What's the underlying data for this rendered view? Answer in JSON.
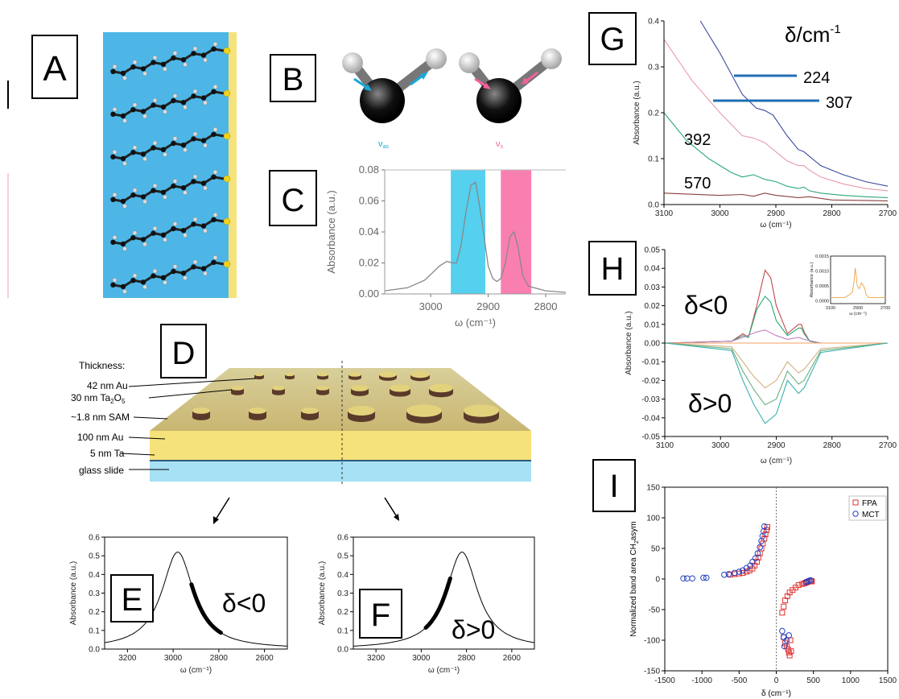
{
  "panels": {
    "A": "A",
    "B": "B",
    "C": "C",
    "D": "D",
    "E": "E",
    "F": "F",
    "G": "G",
    "H": "H",
    "I": "I"
  },
  "panel_b": {
    "label_left": "ν",
    "label_left_sub": "as",
    "label_right": "ν",
    "label_right_sub": "s"
  },
  "panel_d": {
    "thickness_title": "Thickness:",
    "layers": [
      "42 nm Au",
      "30 nm Ta",
      "~1.8 nm SAM",
      "100 nm Au",
      "5 nm Ta",
      "glass slide"
    ],
    "ta2o5_sub2": "2",
    "ta2o5_o": "O",
    "ta2o5_sub5": "5"
  },
  "colors": {
    "cyan_band": "#55d0ee",
    "pink_band": "#f97fb1",
    "water": "#4db6e6",
    "gold": "#f6e27a",
    "glass": "#a6e1f5"
  },
  "chart_data": [
    {
      "id": "C",
      "type": "line",
      "xlabel": "ω (cm⁻¹)",
      "ylabel": "Absorbance (a.u.)",
      "xlim": [
        3080,
        2765
      ],
      "ylim": [
        0,
        0.08
      ],
      "xticks": [
        "3000",
        "2900",
        "2800"
      ],
      "yticks": [
        "0.00",
        "0.02",
        "0.04",
        "0.06",
        "0.08"
      ],
      "x": [
        3080,
        3040,
        3010,
        2985,
        2972,
        2962,
        2955,
        2948,
        2938,
        2930,
        2922,
        2912,
        2900,
        2892,
        2885,
        2878,
        2870,
        2862,
        2855,
        2848,
        2840,
        2830,
        2800,
        2765
      ],
      "y": [
        0.002,
        0.004,
        0.009,
        0.018,
        0.021,
        0.02,
        0.02,
        0.03,
        0.054,
        0.07,
        0.072,
        0.05,
        0.018,
        0.01,
        0.008,
        0.01,
        0.02,
        0.037,
        0.04,
        0.03,
        0.012,
        0.005,
        0.002,
        0.001
      ],
      "bands": [
        {
          "from": 2965,
          "to": 2905
        },
        {
          "from": 2878,
          "to": 2825
        }
      ]
    },
    {
      "id": "E",
      "type": "line",
      "xlabel": "ω (cm⁻¹)",
      "ylabel": "Absorbance (a.u.)",
      "xlim": [
        3300,
        2500
      ],
      "ylim": [
        0,
        0.6
      ],
      "xticks": [
        "3200",
        "3000",
        "2800",
        "2600"
      ],
      "yticks": [
        "0.0",
        "0.1",
        "0.2",
        "0.3",
        "0.4",
        "0.5",
        "0.6"
      ],
      "center": 2980,
      "peak": 0.52,
      "width": 170,
      "annotation": "δ<0"
    },
    {
      "id": "F",
      "type": "line",
      "xlabel": "ω (cm⁻¹)",
      "ylabel": "Absorbance (a.u.)",
      "xlim": [
        3300,
        2500
      ],
      "ylim": [
        0,
        0.6
      ],
      "xticks": [
        "3200",
        "3000",
        "2800",
        "2600"
      ],
      "yticks": [
        "0.0",
        "0.1",
        "0.2",
        "0.3",
        "0.4",
        "0.5",
        "0.6"
      ],
      "center": 2820,
      "peak": 0.52,
      "width": 170,
      "annotation": "δ>0"
    },
    {
      "id": "G",
      "type": "line",
      "xlabel": "ω (cm⁻¹)",
      "ylabel": "Absorbance (a.u.)",
      "xlim": [
        3100,
        2700
      ],
      "ylim": [
        0,
        0.4
      ],
      "xticks": [
        "3100",
        "3000",
        "2900",
        "2800",
        "2700"
      ],
      "yticks": [
        "0.0",
        "0.1",
        "0.2",
        "0.3",
        "0.4"
      ],
      "legend_title": "δ/cm",
      "legend_title_sup": "-1",
      "series": [
        {
          "name": "224",
          "color": "#3c4aa0",
          "x": [
            3035,
            3000,
            2960,
            2935,
            2920,
            2905,
            2880,
            2860,
            2850,
            2840,
            2820,
            2780,
            2740,
            2700
          ],
          "y": [
            0.4,
            0.33,
            0.24,
            0.21,
            0.205,
            0.195,
            0.15,
            0.12,
            0.115,
            0.105,
            0.085,
            0.065,
            0.05,
            0.04
          ]
        },
        {
          "name": "307",
          "color": "#e79aaa",
          "x": [
            3100,
            3050,
            3000,
            2960,
            2940,
            2920,
            2900,
            2880,
            2860,
            2850,
            2840,
            2820,
            2780,
            2740,
            2700
          ],
          "y": [
            0.36,
            0.27,
            0.2,
            0.15,
            0.145,
            0.135,
            0.115,
            0.095,
            0.085,
            0.085,
            0.075,
            0.06,
            0.045,
            0.035,
            0.03
          ]
        },
        {
          "name": "392",
          "color": "#2aa878",
          "x": [
            3100,
            3060,
            3020,
            2980,
            2960,
            2940,
            2920,
            2900,
            2880,
            2860,
            2850,
            2840,
            2820,
            2780,
            2740,
            2700
          ],
          "y": [
            0.2,
            0.14,
            0.1,
            0.07,
            0.06,
            0.065,
            0.055,
            0.05,
            0.04,
            0.035,
            0.038,
            0.03,
            0.025,
            0.02,
            0.017,
            0.015
          ]
        },
        {
          "name": "570",
          "color": "#8a4040",
          "x": [
            3100,
            3000,
            2960,
            2940,
            2920,
            2900,
            2860,
            2840,
            2800,
            2700
          ],
          "y": [
            0.025,
            0.02,
            0.022,
            0.018,
            0.025,
            0.02,
            0.015,
            0.017,
            0.01,
            0.008
          ]
        }
      ],
      "lines": [
        {
          "label": "224"
        },
        {
          "label": "307"
        }
      ],
      "tag_392": "392",
      "tag_570": "570"
    },
    {
      "id": "H",
      "type": "line",
      "xlabel": "ω (cm⁻¹)",
      "ylabel": "Absorbance (a.u.)",
      "xlim": [
        3100,
        2700
      ],
      "ylim": [
        -0.05,
        0.05
      ],
      "xticks": [
        "3100",
        "3000",
        "2900",
        "2800",
        "2700"
      ],
      "yticks": [
        "0.05",
        "0.04",
        "0.03",
        "0.02",
        "0.01",
        "0.00",
        "-0.01",
        "-0.02",
        "-0.03",
        "-0.04",
        "-0.05"
      ],
      "annotation_top": "δ<0",
      "annotation_bottom": "δ>0",
      "series": [
        {
          "color": "#c04848",
          "x": [
            3100,
            2980,
            2960,
            2950,
            2935,
            2920,
            2910,
            2900,
            2880,
            2860,
            2855,
            2850,
            2840,
            2820,
            2700
          ],
          "y": [
            0,
            0.001,
            0.005,
            0.003,
            0.02,
            0.039,
            0.035,
            0.02,
            0.005,
            0.01,
            0.01,
            0.006,
            0.001,
            0,
            0
          ]
        },
        {
          "color": "#2aa878",
          "x": [
            3100,
            2980,
            2960,
            2950,
            2935,
            2920,
            2910,
            2900,
            2880,
            2860,
            2855,
            2850,
            2840,
            2820,
            2700
          ],
          "y": [
            0,
            0.001,
            0.004,
            0.003,
            0.018,
            0.025,
            0.022,
            0.012,
            0.004,
            0.008,
            0.008,
            0.005,
            0.001,
            0,
            0
          ]
        },
        {
          "color": "#c080c0",
          "x": [
            3100,
            2980,
            2960,
            2935,
            2920,
            2900,
            2880,
            2860,
            2850,
            2820,
            2700
          ],
          "y": [
            0,
            0.001,
            0.003,
            0.006,
            0.007,
            0.004,
            0.002,
            0.003,
            0.002,
            0,
            0
          ]
        },
        {
          "color": "#f0a060",
          "x": [
            3100,
            2700
          ],
          "y": [
            0,
            0
          ]
        },
        {
          "color": "#d0b080",
          "x": [
            3100,
            2980,
            2960,
            2940,
            2920,
            2900,
            2880,
            2860,
            2850,
            2820,
            2700
          ],
          "y": [
            0,
            -0.002,
            -0.01,
            -0.018,
            -0.024,
            -0.02,
            -0.01,
            -0.016,
            -0.014,
            -0.003,
            0
          ]
        },
        {
          "color": "#6ab080",
          "x": [
            3100,
            2980,
            2960,
            2940,
            2920,
            2900,
            2880,
            2860,
            2850,
            2820,
            2700
          ],
          "y": [
            0,
            -0.003,
            -0.015,
            -0.025,
            -0.033,
            -0.03,
            -0.015,
            -0.022,
            -0.02,
            -0.004,
            0
          ]
        },
        {
          "color": "#3ab0b0",
          "x": [
            3100,
            2980,
            2960,
            2940,
            2920,
            2900,
            2880,
            2860,
            2850,
            2820,
            2700
          ],
          "y": [
            0,
            -0.004,
            -0.02,
            -0.033,
            -0.043,
            -0.038,
            -0.02,
            -0.027,
            -0.024,
            -0.005,
            0
          ]
        }
      ],
      "inset": {
        "xlabel": "ω (cm⁻¹)",
        "ylabel": "Absorbance (a.u.)",
        "xlim": [
          3100,
          2700
        ],
        "ylim": [
          -0.0001,
          0.0015
        ],
        "xticks": [
          "3100",
          "2900",
          "2700"
        ],
        "yticks": [
          "0.0000",
          "0.0005",
          "0.0010",
          "0.0015"
        ],
        "x": [
          3100,
          3000,
          2960,
          2940,
          2930,
          2920,
          2915,
          2905,
          2890,
          2875,
          2860,
          2850,
          2840,
          2820,
          2780,
          2700
        ],
        "y": [
          0.0001,
          0.0001,
          0.0002,
          0.0003,
          0.0006,
          0.0011,
          0.0009,
          0.0005,
          0.0004,
          0.0006,
          0.0005,
          0.0004,
          0.0002,
          0.0001,
          0.0001,
          0.0001
        ]
      }
    },
    {
      "id": "I",
      "type": "scatter",
      "xlabel": "δ (cm⁻¹)",
      "ylabel": "Normalized band area CH",
      "ylabel_sub": "2",
      "ylabel_suffix": "asym",
      "xlim": [
        -1500,
        1500
      ],
      "ylim": [
        -150,
        150
      ],
      "xticks": [
        "-1500",
        "-1000",
        "-500",
        "0",
        "500",
        "1000",
        "1500"
      ],
      "yticks": [
        "150",
        "100",
        "50",
        "0",
        "-50",
        "-100",
        "-150"
      ],
      "series": [
        {
          "name": "FPA",
          "color": "#e03030",
          "marker": "square",
          "x": [
            -620,
            -560,
            -500,
            -450,
            -400,
            -360,
            -320,
            -290,
            -260,
            -240,
            -220,
            -200,
            -180,
            -160,
            -145,
            -130,
            -120,
            80,
            100,
            120,
            150,
            180,
            220,
            260,
            300,
            350,
            380,
            400,
            420,
            440,
            460,
            470,
            480,
            100,
            120,
            140,
            160,
            170,
            180,
            190,
            200
          ],
          "y": [
            7,
            8,
            9,
            10,
            12,
            14,
            17,
            22,
            28,
            35,
            42,
            50,
            58,
            66,
            73,
            80,
            85,
            -55,
            -45,
            -35,
            -28,
            -22,
            -18,
            -14,
            -10,
            -8,
            -7,
            -6,
            -5,
            -4,
            -3,
            -3,
            -4,
            -95,
            -105,
            -110,
            -115,
            -120,
            -125,
            -100,
            -118
          ]
        },
        {
          "name": "MCT",
          "color": "#2040c0",
          "marker": "circle",
          "x": [
            -1250,
            -1200,
            -1130,
            -980,
            -940,
            -700,
            -640,
            -560,
            -500,
            -450,
            -400,
            -350,
            -320,
            -280,
            -250,
            -220,
            -200,
            -185,
            -170,
            -160,
            80,
            100,
            110,
            140,
            170,
            400,
            420,
            440,
            460
          ],
          "y": [
            1,
            1,
            1,
            2,
            2,
            7,
            8,
            10,
            12,
            14,
            18,
            22,
            28,
            34,
            42,
            52,
            62,
            70,
            78,
            86,
            -85,
            -95,
            -110,
            -100,
            -92,
            -5,
            -4,
            -3,
            -2
          ]
        }
      ]
    }
  ]
}
